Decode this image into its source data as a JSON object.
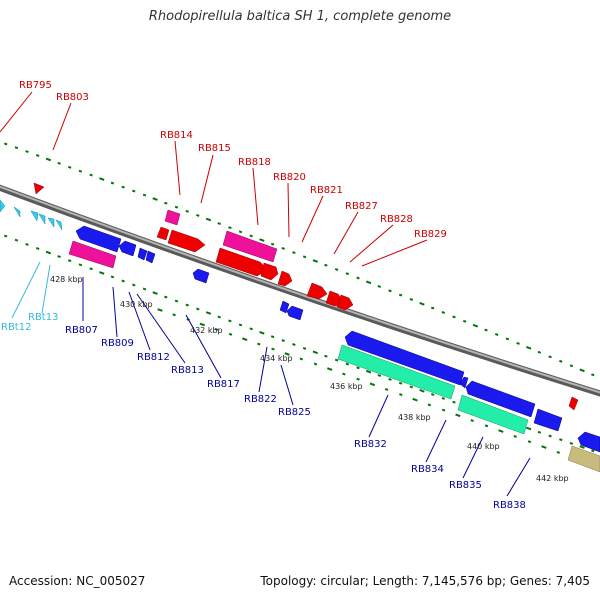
{
  "title": "Rhodopirellula baltica SH 1, complete genome",
  "footer": {
    "accession": "Accession: NC_005027",
    "stats": "Topology: circular; Length: 7,145,576 bp; Genes: 7,405"
  },
  "colors": {
    "forward_label": "#cc0000",
    "reverse_label": "#000099",
    "trna_label": "#33bbdd",
    "backbone": "#808080",
    "tick": "#007700"
  },
  "kbp_ticks": [
    "428 kbp",
    "430 kbp",
    "432 kbp",
    "434 kbp",
    "436 kbp",
    "438 kbp",
    "440 kbp",
    "442 kbp"
  ],
  "forward_labels": [
    "RB795",
    "RB803",
    "RB814",
    "RB815",
    "RB818",
    "RB820",
    "RB821",
    "RB827",
    "RB828",
    "RB829"
  ],
  "reverse_labels": [
    "RB807",
    "RB809",
    "RB812",
    "RB813",
    "RB817",
    "RB822",
    "RB825",
    "RB832",
    "RB834",
    "RB835",
    "RB838"
  ],
  "trna_labels": [
    "RBt12",
    "RBt13"
  ]
}
